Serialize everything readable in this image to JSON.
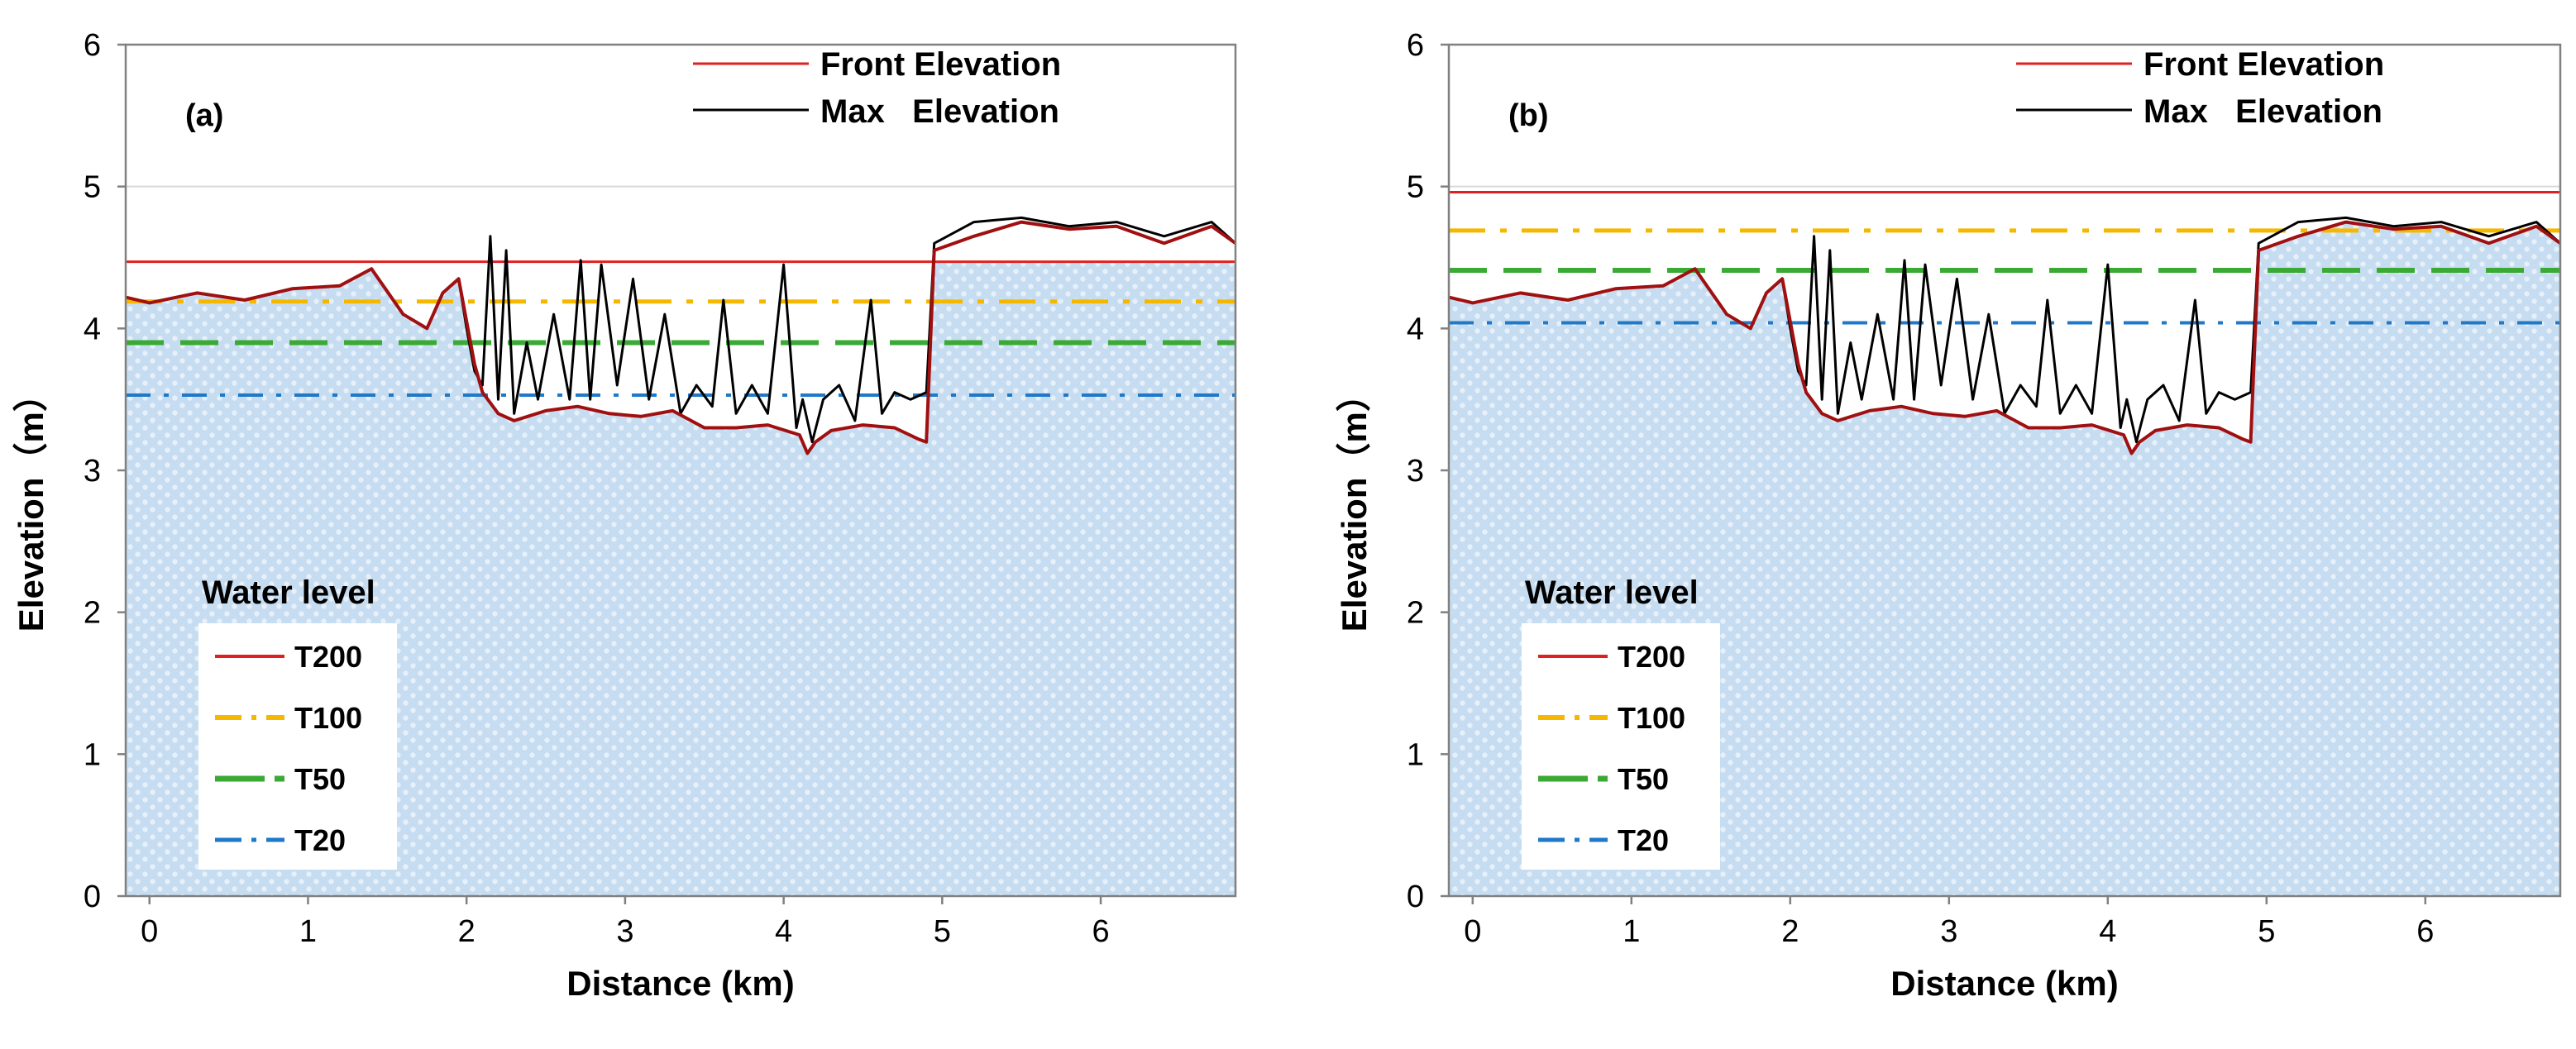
{
  "chart_data": [
    {
      "type": "line",
      "panel_label": "(a)",
      "xlabel": "Distance (km)",
      "ylabel": "Elevation（m）",
      "xlim": [
        -0.15,
        6.85
      ],
      "ylim": [
        0,
        6
      ],
      "xticks": [
        "0",
        "1",
        "2",
        "3",
        "4",
        "5",
        "6"
      ],
      "yticks": [
        "0",
        "1",
        "2",
        "3",
        "4",
        "5",
        "6"
      ],
      "legend": [
        "Front Elevation",
        "Max   Elevation"
      ],
      "water_level_title": "Water level",
      "water_levels": [
        {
          "name": "T200",
          "value": 4.47,
          "color": "#e02020",
          "style": "solid"
        },
        {
          "name": "T100",
          "value": 4.19,
          "color": "#f5b800",
          "style": "dashdot"
        },
        {
          "name": "T50",
          "value": 3.9,
          "color": "#3aaa35",
          "style": "dashed"
        },
        {
          "name": "T20",
          "value": 3.53,
          "color": "#1f78c8",
          "style": "dashdot-fine"
        }
      ],
      "front_elevation": {
        "x": [
          -0.15,
          0.0,
          0.3,
          0.6,
          0.9,
          1.2,
          1.4,
          1.6,
          1.75,
          1.85,
          1.95,
          2.0,
          2.05,
          2.1,
          2.2,
          2.3,
          2.5,
          2.7,
          2.9,
          3.1,
          3.3,
          3.5,
          3.7,
          3.9,
          4.1,
          4.15,
          4.2,
          4.3,
          4.5,
          4.7,
          4.85,
          4.9,
          4.95,
          5.2,
          5.5,
          5.8,
          6.1,
          6.4,
          6.7,
          6.85
        ],
        "y": [
          4.22,
          4.18,
          4.25,
          4.2,
          4.28,
          4.3,
          4.42,
          4.1,
          4.0,
          4.25,
          4.35,
          4.05,
          3.75,
          3.55,
          3.4,
          3.35,
          3.42,
          3.45,
          3.4,
          3.38,
          3.42,
          3.3,
          3.3,
          3.32,
          3.25,
          3.12,
          3.2,
          3.28,
          3.32,
          3.3,
          3.22,
          3.2,
          4.55,
          4.65,
          4.75,
          4.7,
          4.72,
          4.6,
          4.72,
          4.6
        ]
      },
      "max_elevation": {
        "x": [
          -0.15,
          0.0,
          0.3,
          0.6,
          0.9,
          1.2,
          1.4,
          1.6,
          1.75,
          1.85,
          1.95,
          2.0,
          2.05,
          2.1,
          2.15,
          2.2,
          2.25,
          2.3,
          2.38,
          2.45,
          2.55,
          2.65,
          2.72,
          2.78,
          2.85,
          2.95,
          3.05,
          3.15,
          3.25,
          3.35,
          3.45,
          3.55,
          3.62,
          3.7,
          3.8,
          3.9,
          4.0,
          4.08,
          4.12,
          4.18,
          4.25,
          4.35,
          4.45,
          4.55,
          4.62,
          4.7,
          4.8,
          4.9,
          4.95,
          5.2,
          5.5,
          5.8,
          6.1,
          6.4,
          6.7,
          6.85
        ],
        "y": [
          4.22,
          4.18,
          4.25,
          4.2,
          4.28,
          4.3,
          4.42,
          4.1,
          4.0,
          4.25,
          4.35,
          4.0,
          3.7,
          3.6,
          4.65,
          3.5,
          4.55,
          3.4,
          3.9,
          3.5,
          4.1,
          3.5,
          4.48,
          3.5,
          4.45,
          3.6,
          4.35,
          3.5,
          4.1,
          3.4,
          3.6,
          3.45,
          4.2,
          3.4,
          3.6,
          3.4,
          4.45,
          3.3,
          3.5,
          3.2,
          3.5,
          3.6,
          3.35,
          4.2,
          3.4,
          3.55,
          3.5,
          3.55,
          4.6,
          4.75,
          4.78,
          4.72,
          4.75,
          4.65,
          4.75,
          4.6
        ]
      }
    },
    {
      "type": "line",
      "panel_label": "(b)",
      "xlabel": "Distance (km)",
      "ylabel": "Elevation（m）",
      "xlim": [
        -0.15,
        6.85
      ],
      "ylim": [
        0,
        6
      ],
      "xticks": [
        "0",
        "1",
        "2",
        "3",
        "4",
        "5",
        "6"
      ],
      "yticks": [
        "0",
        "1",
        "2",
        "3",
        "4",
        "5",
        "6"
      ],
      "legend": [
        "Front Elevation",
        "Max   Elevation"
      ],
      "water_level_title": "Water level",
      "water_levels": [
        {
          "name": "T200",
          "value": 4.96,
          "color": "#e02020",
          "style": "solid"
        },
        {
          "name": "T100",
          "value": 4.69,
          "color": "#f5b800",
          "style": "dashdot"
        },
        {
          "name": "T50",
          "value": 4.41,
          "color": "#3aaa35",
          "style": "dashed"
        },
        {
          "name": "T20",
          "value": 4.04,
          "color": "#1f78c8",
          "style": "dashdot-fine"
        }
      ],
      "front_elevation": {
        "x": [
          -0.15,
          0.0,
          0.3,
          0.6,
          0.9,
          1.2,
          1.4,
          1.6,
          1.75,
          1.85,
          1.95,
          2.0,
          2.05,
          2.1,
          2.2,
          2.3,
          2.5,
          2.7,
          2.9,
          3.1,
          3.3,
          3.5,
          3.7,
          3.9,
          4.1,
          4.15,
          4.2,
          4.3,
          4.5,
          4.7,
          4.85,
          4.9,
          4.95,
          5.2,
          5.5,
          5.8,
          6.1,
          6.4,
          6.7,
          6.85
        ],
        "y": [
          4.22,
          4.18,
          4.25,
          4.2,
          4.28,
          4.3,
          4.42,
          4.1,
          4.0,
          4.25,
          4.35,
          4.05,
          3.75,
          3.55,
          3.4,
          3.35,
          3.42,
          3.45,
          3.4,
          3.38,
          3.42,
          3.3,
          3.3,
          3.32,
          3.25,
          3.12,
          3.2,
          3.28,
          3.32,
          3.3,
          3.22,
          3.2,
          4.55,
          4.65,
          4.75,
          4.7,
          4.72,
          4.6,
          4.72,
          4.6
        ]
      },
      "max_elevation": {
        "x": [
          -0.15,
          0.0,
          0.3,
          0.6,
          0.9,
          1.2,
          1.4,
          1.6,
          1.75,
          1.85,
          1.95,
          2.0,
          2.05,
          2.1,
          2.15,
          2.2,
          2.25,
          2.3,
          2.38,
          2.45,
          2.55,
          2.65,
          2.72,
          2.78,
          2.85,
          2.95,
          3.05,
          3.15,
          3.25,
          3.35,
          3.45,
          3.55,
          3.62,
          3.7,
          3.8,
          3.9,
          4.0,
          4.08,
          4.12,
          4.18,
          4.25,
          4.35,
          4.45,
          4.55,
          4.62,
          4.7,
          4.8,
          4.9,
          4.95,
          5.2,
          5.5,
          5.8,
          6.1,
          6.4,
          6.7,
          6.85
        ],
        "y": [
          4.22,
          4.18,
          4.25,
          4.2,
          4.28,
          4.3,
          4.42,
          4.1,
          4.0,
          4.25,
          4.35,
          4.0,
          3.7,
          3.6,
          4.65,
          3.5,
          4.55,
          3.4,
          3.9,
          3.5,
          4.1,
          3.5,
          4.48,
          3.5,
          4.45,
          3.6,
          4.35,
          3.5,
          4.1,
          3.4,
          3.6,
          3.45,
          4.2,
          3.4,
          3.6,
          3.4,
          4.45,
          3.3,
          3.5,
          3.2,
          3.5,
          3.6,
          3.35,
          4.2,
          3.4,
          3.55,
          3.5,
          3.55,
          4.6,
          4.75,
          4.78,
          4.72,
          4.75,
          4.65,
          4.75,
          4.6
        ]
      }
    }
  ],
  "colors": {
    "front_elevation": "#e02020",
    "max_elevation": "#000000",
    "ground_line": "#a01010",
    "water_fill": "#c9dff2"
  }
}
